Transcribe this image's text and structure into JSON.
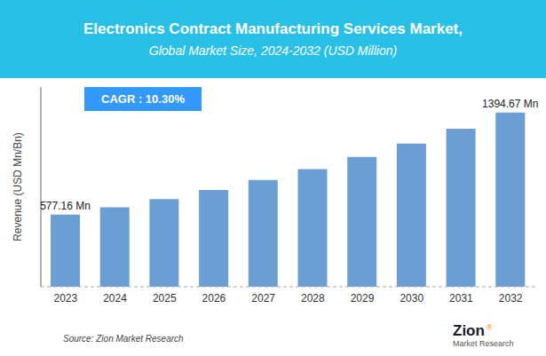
{
  "chart_data": {
    "type": "bar",
    "title": "Electronics Contract Manufacturing Services Market,",
    "subtitle": "Global Market Size, 2024-2032 (USD Million)",
    "y_label": "Revenue (USD Mn/Bn)",
    "categories": [
      "2023",
      "2024",
      "2025",
      "2026",
      "2027",
      "2028",
      "2029",
      "2030",
      "2031",
      "2032"
    ],
    "values": [
      577.16,
      636.59,
      701.86,
      774.35,
      854.51,
      942.94,
      1040.27,
      1147.42,
      1265.6,
      1394.67
    ],
    "color": "#6B9FD4",
    "ylim": [
      0,
      1600
    ],
    "yticks": [],
    "grid": false,
    "tick_labels": "x",
    "annotations": [
      {
        "category": "2023",
        "text": "577.16 Mn"
      },
      {
        "category": "2032",
        "text": "1394.67 Mn"
      },
      {
        "text": "CAGR : 10.30%"
      },
      {
        "text": "Source: Zion Market Research"
      },
      {
        "text": "Zion"
      },
      {
        "text": "®"
      },
      {
        "text": "Market Research"
      }
    ]
  }
}
